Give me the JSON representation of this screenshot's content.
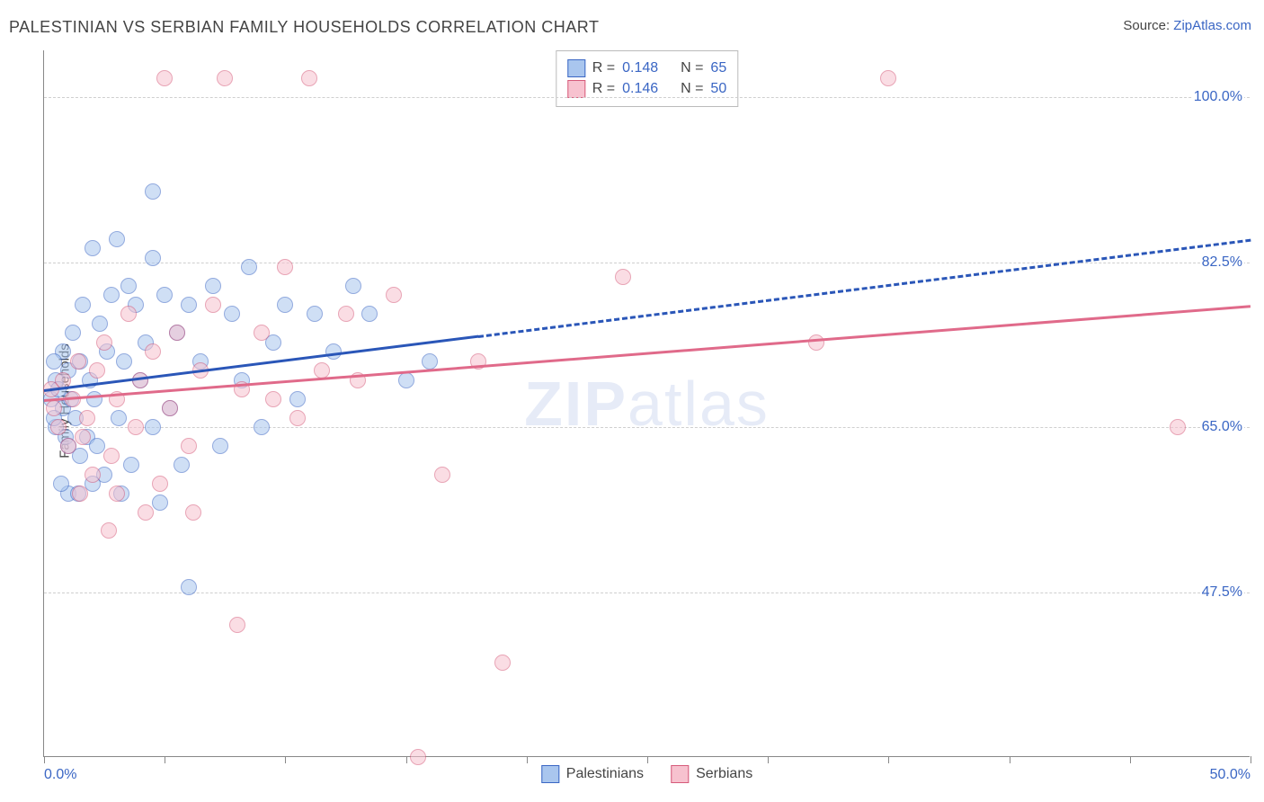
{
  "title": "PALESTINIAN VS SERBIAN FAMILY HOUSEHOLDS CORRELATION CHART",
  "source": {
    "prefix": "Source: ",
    "name": "ZipAtlas.com"
  },
  "chart": {
    "type": "scatter",
    "ylabel": "Family Households",
    "xlim": [
      0,
      50
    ],
    "ylim": [
      30,
      105
    ],
    "x_ticks": [
      0,
      5,
      10,
      15,
      20,
      25,
      30,
      35,
      40,
      45,
      50
    ],
    "x_tick_labels": {
      "0": "0.0%",
      "50": "50.0%"
    },
    "y_gridlines": [
      47.5,
      65.0,
      82.5,
      100.0
    ],
    "y_tick_labels": [
      "47.5%",
      "65.0%",
      "82.5%",
      "100.0%"
    ],
    "grid_color": "#cfcfcf",
    "axis_color": "#888888",
    "background_color": "#ffffff",
    "label_color": "#3a66c4",
    "marker_radius": 9,
    "marker_opacity": 0.55,
    "line_width": 3,
    "legend_stats": {
      "r_label": "R =",
      "n_label": "N ="
    },
    "series": [
      {
        "label": "Palestinians",
        "fill": "#a9c6ee",
        "stroke": "#3a66c4",
        "r": "0.148",
        "n": "65",
        "trend": {
          "y_at_x0": 69,
          "y_at_xmax": 85,
          "solid_until_x": 18,
          "color": "#2a56b8"
        },
        "points": [
          [
            0.3,
            68
          ],
          [
            0.5,
            70
          ],
          [
            0.5,
            65
          ],
          [
            0.6,
            69
          ],
          [
            0.8,
            67
          ],
          [
            0.8,
            73
          ],
          [
            0.9,
            64
          ],
          [
            1.0,
            63
          ],
          [
            1.0,
            71
          ],
          [
            1.1,
            68
          ],
          [
            1.2,
            75
          ],
          [
            1.3,
            66
          ],
          [
            1.5,
            62
          ],
          [
            1.5,
            72
          ],
          [
            1.6,
            78
          ],
          [
            1.8,
            64
          ],
          [
            1.9,
            70
          ],
          [
            2.0,
            84
          ],
          [
            2.1,
            68
          ],
          [
            2.2,
            63
          ],
          [
            2.3,
            76
          ],
          [
            2.5,
            60
          ],
          [
            2.6,
            73
          ],
          [
            2.8,
            79
          ],
          [
            3.0,
            85
          ],
          [
            3.1,
            66
          ],
          [
            3.3,
            72
          ],
          [
            3.5,
            80
          ],
          [
            3.6,
            61
          ],
          [
            3.8,
            78
          ],
          [
            4.0,
            70
          ],
          [
            4.2,
            74
          ],
          [
            4.5,
            83
          ],
          [
            4.5,
            65
          ],
          [
            4.5,
            90
          ],
          [
            5.0,
            79
          ],
          [
            5.2,
            67
          ],
          [
            5.5,
            75
          ],
          [
            5.7,
            61
          ],
          [
            6.0,
            48
          ],
          [
            6.0,
            78
          ],
          [
            6.5,
            72
          ],
          [
            7.0,
            80
          ],
          [
            7.3,
            63
          ],
          [
            7.8,
            77
          ],
          [
            8.2,
            70
          ],
          [
            8.5,
            82
          ],
          [
            9.0,
            65
          ],
          [
            9.5,
            74
          ],
          [
            10.0,
            78
          ],
          [
            10.5,
            68
          ],
          [
            11.2,
            77
          ],
          [
            12.0,
            73
          ],
          [
            12.8,
            80
          ],
          [
            13.5,
            77
          ],
          [
            15.0,
            70
          ],
          [
            16.0,
            72
          ],
          [
            1.0,
            58
          ],
          [
            3.2,
            58
          ],
          [
            2.0,
            59
          ],
          [
            0.7,
            59
          ],
          [
            1.4,
            58
          ],
          [
            4.8,
            57
          ],
          [
            0.4,
            72
          ],
          [
            0.4,
            66
          ]
        ]
      },
      {
        "label": "Serbians",
        "fill": "#f7c2cf",
        "stroke": "#d65a7a",
        "r": "0.146",
        "n": "50",
        "trend": {
          "y_at_x0": 68,
          "y_at_xmax": 78,
          "solid_until_x": 50,
          "color": "#e06a8a"
        },
        "points": [
          [
            0.4,
            67
          ],
          [
            0.6,
            65
          ],
          [
            0.8,
            70
          ],
          [
            1.0,
            63
          ],
          [
            1.2,
            68
          ],
          [
            1.4,
            72
          ],
          [
            1.6,
            64
          ],
          [
            1.8,
            66
          ],
          [
            2.0,
            60
          ],
          [
            2.2,
            71
          ],
          [
            2.5,
            74
          ],
          [
            2.8,
            62
          ],
          [
            3.0,
            68
          ],
          [
            3.5,
            77
          ],
          [
            3.8,
            65
          ],
          [
            4.0,
            70
          ],
          [
            4.2,
            56
          ],
          [
            4.5,
            73
          ],
          [
            5.0,
            102
          ],
          [
            5.2,
            67
          ],
          [
            5.5,
            75
          ],
          [
            6.0,
            63
          ],
          [
            6.5,
            71
          ],
          [
            7.0,
            78
          ],
          [
            7.5,
            102
          ],
          [
            8.0,
            44
          ],
          [
            8.2,
            69
          ],
          [
            9.0,
            75
          ],
          [
            9.5,
            68
          ],
          [
            10.0,
            82
          ],
          [
            10.5,
            66
          ],
          [
            11.0,
            102
          ],
          [
            11.5,
            71
          ],
          [
            12.5,
            77
          ],
          [
            13.0,
            70
          ],
          [
            14.5,
            79
          ],
          [
            15.5,
            30
          ],
          [
            16.5,
            60
          ],
          [
            18.0,
            72
          ],
          [
            19.0,
            40
          ],
          [
            24.0,
            81
          ],
          [
            32.0,
            74
          ],
          [
            35.0,
            102
          ],
          [
            47.0,
            65
          ],
          [
            3.0,
            58
          ],
          [
            1.5,
            58
          ],
          [
            4.8,
            59
          ],
          [
            6.2,
            56
          ],
          [
            2.7,
            54
          ],
          [
            0.3,
            69
          ]
        ]
      }
    ]
  }
}
